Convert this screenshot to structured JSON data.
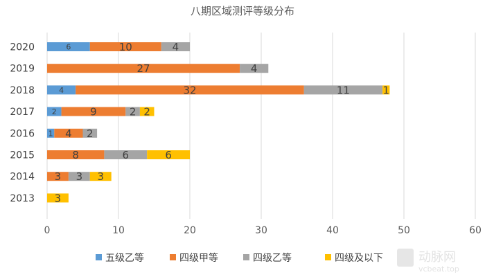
{
  "chart_data": {
    "type": "bar",
    "orientation": "horizontal",
    "stacked": true,
    "title": "八期区域测评等级分布",
    "categories": [
      "2020",
      "2019",
      "2018",
      "2017",
      "2016",
      "2015",
      "2014",
      "2013"
    ],
    "series": [
      {
        "name": "五级乙等",
        "color": "#5b9bd5",
        "values": [
          6,
          0,
          4,
          2,
          1,
          0,
          0,
          0
        ]
      },
      {
        "name": "四级甲等",
        "color": "#ed7d31",
        "values": [
          10,
          27,
          32,
          9,
          4,
          8,
          3,
          0
        ]
      },
      {
        "name": "四级乙等",
        "color": "#a5a5a5",
        "values": [
          4,
          4,
          11,
          2,
          2,
          6,
          3,
          0
        ]
      },
      {
        "name": "四级及以下",
        "color": "#ffc000",
        "values": [
          0,
          0,
          1,
          2,
          0,
          6,
          3,
          3
        ]
      }
    ],
    "xlim": [
      0,
      60
    ],
    "xticks": [
      0,
      10,
      20,
      30,
      40,
      50,
      60
    ],
    "grid": "vertical",
    "legend": "bottom"
  },
  "watermark": {
    "text": "动脉网",
    "url": "vcbeat.top"
  }
}
